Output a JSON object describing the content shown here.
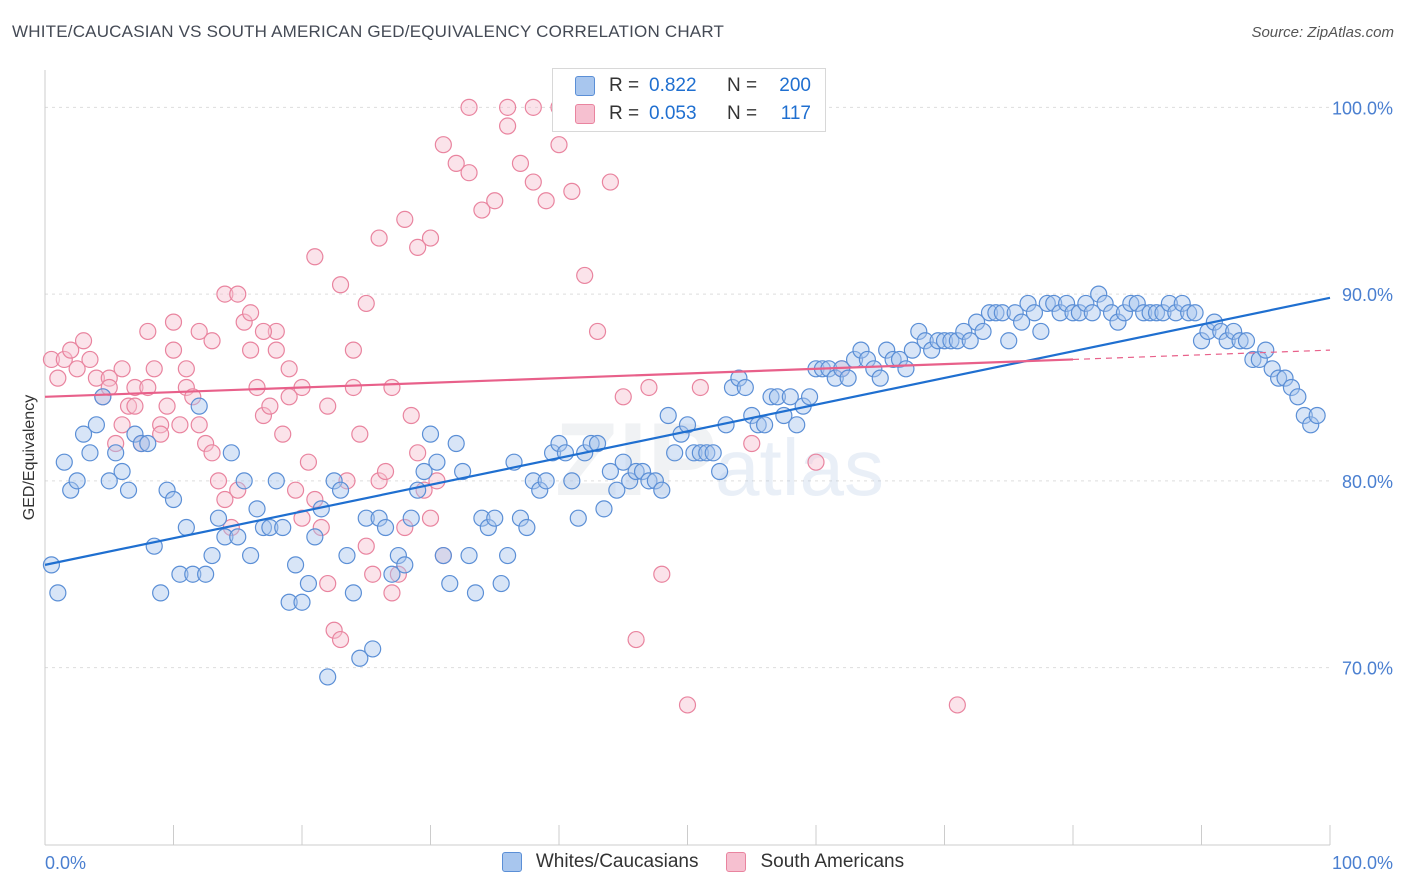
{
  "title": "WHITE/CAUCASIAN VS SOUTH AMERICAN GED/EQUIVALENCY CORRELATION CHART",
  "source": "Source: ZipAtlas.com",
  "legend": {
    "row1": {
      "r_label": "R =",
      "r_value": "0.822",
      "n_label": "N =",
      "n_value": "200"
    },
    "row2": {
      "r_label": "R =",
      "r_value": "0.053",
      "n_label": "N =",
      "n_value": "117"
    }
  },
  "bottom_legend": {
    "series1": "Whites/Caucasians",
    "series2": "South Americans"
  },
  "watermark": {
    "zip": "ZIP",
    "atlas": "atlas"
  },
  "colors": {
    "blue": "#5b8fd6",
    "blue_fill": "#a8c6ee",
    "blue_line": "#1f6fd0",
    "pink": "#e9849f",
    "pink_fill": "#f6c0d0",
    "pink_line": "#e8608a",
    "axis_text": "#4a7fd0"
  },
  "chart_data": {
    "type": "scatter",
    "ylabel": "GED/Equivalency",
    "x_tick_labels": [
      "0.0%",
      "100.0%"
    ],
    "y_tick_labels": [
      "100.0%",
      "90.0%",
      "80.0%",
      "70.0%"
    ],
    "xlim": [
      0,
      100
    ],
    "ylim": [
      60.5,
      102
    ],
    "y_ticks": [
      100,
      90,
      80,
      70
    ],
    "series": [
      {
        "name": "Whites/Caucasians",
        "trend": {
          "x": [
            0,
            100
          ],
          "y": [
            75.5,
            89.8
          ]
        },
        "points": [
          [
            0.5,
            75.5
          ],
          [
            1,
            74
          ],
          [
            1.5,
            81
          ],
          [
            2,
            79.5
          ],
          [
            2.5,
            80
          ],
          [
            3,
            82.5
          ],
          [
            3.5,
            81.5
          ],
          [
            4,
            83
          ],
          [
            4.5,
            84.5
          ],
          [
            5,
            80
          ],
          [
            5.5,
            81.5
          ],
          [
            6,
            80.5
          ],
          [
            6.5,
            79.5
          ],
          [
            7,
            82.5
          ],
          [
            7.5,
            82
          ],
          [
            8,
            82
          ],
          [
            8.5,
            76.5
          ],
          [
            9,
            74
          ],
          [
            9.5,
            79.5
          ],
          [
            10,
            79
          ],
          [
            10.5,
            75
          ],
          [
            11,
            77.5
          ],
          [
            11.5,
            75
          ],
          [
            12,
            84
          ],
          [
            12.5,
            75
          ],
          [
            13,
            76
          ],
          [
            13.5,
            78
          ],
          [
            14,
            77
          ],
          [
            14.5,
            81.5
          ],
          [
            15,
            77
          ],
          [
            15.5,
            80
          ],
          [
            16,
            76
          ],
          [
            16.5,
            78.5
          ],
          [
            17,
            77.5
          ],
          [
            17.5,
            77.5
          ],
          [
            18,
            80
          ],
          [
            18.5,
            77.5
          ],
          [
            19,
            73.5
          ],
          [
            19.5,
            75.5
          ],
          [
            20,
            73.5
          ],
          [
            20.5,
            74.5
          ],
          [
            21,
            77
          ],
          [
            21.5,
            78.5
          ],
          [
            22,
            69.5
          ],
          [
            22.5,
            80
          ],
          [
            23,
            79.5
          ],
          [
            23.5,
            76
          ],
          [
            24,
            74
          ],
          [
            24.5,
            70.5
          ],
          [
            25,
            78
          ],
          [
            25.5,
            71
          ],
          [
            26,
            78
          ],
          [
            26.5,
            77.5
          ],
          [
            27,
            75
          ],
          [
            27.5,
            76
          ],
          [
            28,
            75.5
          ],
          [
            28.5,
            78
          ],
          [
            29,
            79.5
          ],
          [
            29.5,
            80.5
          ],
          [
            30,
            82.5
          ],
          [
            30.5,
            81
          ],
          [
            31,
            76
          ],
          [
            31.5,
            74.5
          ],
          [
            32,
            82
          ],
          [
            32.5,
            80.5
          ],
          [
            33,
            76
          ],
          [
            33.5,
            74
          ],
          [
            34,
            78
          ],
          [
            34.5,
            77.5
          ],
          [
            35,
            78
          ],
          [
            35.5,
            74.5
          ],
          [
            36,
            76
          ],
          [
            36.5,
            81
          ],
          [
            37,
            78
          ],
          [
            37.5,
            77.5
          ],
          [
            38,
            80
          ],
          [
            38.5,
            79.5
          ],
          [
            39,
            80
          ],
          [
            39.5,
            81.5
          ],
          [
            40,
            82
          ],
          [
            40.5,
            81.5
          ],
          [
            41,
            80
          ],
          [
            41.5,
            78
          ],
          [
            42,
            81.5
          ],
          [
            42.5,
            82
          ],
          [
            43,
            82
          ],
          [
            43.5,
            78.5
          ],
          [
            44,
            80.5
          ],
          [
            44.5,
            79.5
          ],
          [
            45,
            81
          ],
          [
            45.5,
            80
          ],
          [
            46,
            80.5
          ],
          [
            46.5,
            80.5
          ],
          [
            47,
            80
          ],
          [
            47.5,
            80
          ],
          [
            48,
            79.5
          ],
          [
            48.5,
            83.5
          ],
          [
            49,
            81.5
          ],
          [
            49.5,
            82.5
          ],
          [
            50,
            83
          ],
          [
            50.5,
            81.5
          ],
          [
            51,
            81.5
          ],
          [
            51.5,
            81.5
          ],
          [
            52,
            81.5
          ],
          [
            52.5,
            80.5
          ],
          [
            53,
            83
          ],
          [
            53.5,
            85
          ],
          [
            54,
            85.5
          ],
          [
            54.5,
            85
          ],
          [
            55,
            83.5
          ],
          [
            55.5,
            83
          ],
          [
            56,
            83
          ],
          [
            56.5,
            84.5
          ],
          [
            57,
            84.5
          ],
          [
            57.5,
            83.5
          ],
          [
            58,
            84.5
          ],
          [
            58.5,
            83
          ],
          [
            59,
            84
          ],
          [
            59.5,
            84.5
          ],
          [
            60,
            86
          ],
          [
            60.5,
            86
          ],
          [
            61,
            86
          ],
          [
            61.5,
            85.5
          ],
          [
            62,
            86
          ],
          [
            62.5,
            85.5
          ],
          [
            63,
            86.5
          ],
          [
            63.5,
            87
          ],
          [
            64,
            86.5
          ],
          [
            64.5,
            86
          ],
          [
            65,
            85.5
          ],
          [
            65.5,
            87
          ],
          [
            66,
            86.5
          ],
          [
            66.5,
            86.5
          ],
          [
            67,
            86
          ],
          [
            67.5,
            87
          ],
          [
            68,
            88
          ],
          [
            68.5,
            87.5
          ],
          [
            69,
            87
          ],
          [
            69.5,
            87.5
          ],
          [
            70,
            87.5
          ],
          [
            70.5,
            87.5
          ],
          [
            71,
            87.5
          ],
          [
            71.5,
            88
          ],
          [
            72,
            87.5
          ],
          [
            72.5,
            88.5
          ],
          [
            73,
            88
          ],
          [
            73.5,
            89
          ],
          [
            74,
            89
          ],
          [
            74.5,
            89
          ],
          [
            75,
            87.5
          ],
          [
            75.5,
            89
          ],
          [
            76,
            88.5
          ],
          [
            76.5,
            89.5
          ],
          [
            77,
            89
          ],
          [
            77.5,
            88
          ],
          [
            78,
            89.5
          ],
          [
            78.5,
            89.5
          ],
          [
            79,
            89
          ],
          [
            79.5,
            89.5
          ],
          [
            80,
            89
          ],
          [
            80.5,
            89
          ],
          [
            81,
            89.5
          ],
          [
            81.5,
            89
          ],
          [
            82,
            90
          ],
          [
            82.5,
            89.5
          ],
          [
            83,
            89
          ],
          [
            83.5,
            88.5
          ],
          [
            84,
            89
          ],
          [
            84.5,
            89.5
          ],
          [
            85,
            89.5
          ],
          [
            85.5,
            89
          ],
          [
            86,
            89
          ],
          [
            86.5,
            89
          ],
          [
            87,
            89
          ],
          [
            87.5,
            89.5
          ],
          [
            88,
            89
          ],
          [
            88.5,
            89.5
          ],
          [
            89,
            89
          ],
          [
            89.5,
            89
          ],
          [
            90,
            87.5
          ],
          [
            90.5,
            88
          ],
          [
            91,
            88.5
          ],
          [
            91.5,
            88
          ],
          [
            92,
            87.5
          ],
          [
            92.5,
            88
          ],
          [
            93,
            87.5
          ],
          [
            93.5,
            87.5
          ],
          [
            94,
            86.5
          ],
          [
            94.5,
            86.5
          ],
          [
            95,
            87
          ],
          [
            95.5,
            86
          ],
          [
            96,
            85.5
          ],
          [
            96.5,
            85.5
          ],
          [
            97,
            85
          ],
          [
            97.5,
            84.5
          ],
          [
            98,
            83.5
          ],
          [
            98.5,
            83
          ],
          [
            99,
            83.5
          ]
        ]
      },
      {
        "name": "South Americans",
        "trend": {
          "x": [
            0,
            80
          ],
          "y": [
            84.5,
            86.5
          ]
        },
        "trend_dashed": {
          "x": [
            80,
            100
          ],
          "y": [
            86.5,
            87
          ]
        },
        "points": [
          [
            0.5,
            86.5
          ],
          [
            1,
            85.5
          ],
          [
            1.5,
            86.5
          ],
          [
            2,
            87
          ],
          [
            2.5,
            86
          ],
          [
            3,
            87.5
          ],
          [
            3.5,
            86.5
          ],
          [
            4,
            85.5
          ],
          [
            4.5,
            84.5
          ],
          [
            5,
            85.5
          ],
          [
            5.5,
            82
          ],
          [
            6,
            83
          ],
          [
            6.5,
            84
          ],
          [
            7,
            85
          ],
          [
            7.5,
            82
          ],
          [
            8,
            88
          ],
          [
            8.5,
            86
          ],
          [
            9,
            83
          ],
          [
            9.5,
            84
          ],
          [
            10,
            87
          ],
          [
            10.5,
            83
          ],
          [
            11,
            85
          ],
          [
            11.5,
            84.5
          ],
          [
            12,
            83
          ],
          [
            12.5,
            82
          ],
          [
            13,
            81.5
          ],
          [
            13.5,
            80
          ],
          [
            14,
            79
          ],
          [
            14.5,
            77.5
          ],
          [
            15,
            79.5
          ],
          [
            15.5,
            88.5
          ],
          [
            16,
            87
          ],
          [
            16.5,
            85
          ],
          [
            17,
            83.5
          ],
          [
            17.5,
            84
          ],
          [
            18,
            88
          ],
          [
            18.5,
            82.5
          ],
          [
            19,
            84.5
          ],
          [
            19.5,
            79.5
          ],
          [
            20,
            78
          ],
          [
            20.5,
            81
          ],
          [
            21,
            79
          ],
          [
            21.5,
            77.5
          ],
          [
            22,
            74.5
          ],
          [
            22.5,
            72
          ],
          [
            23,
            71.5
          ],
          [
            23.5,
            80
          ],
          [
            24,
            85
          ],
          [
            24.5,
            82.5
          ],
          [
            25,
            76.5
          ],
          [
            25.5,
            75
          ],
          [
            26,
            80
          ],
          [
            26.5,
            80.5
          ],
          [
            27,
            74
          ],
          [
            27.5,
            75
          ],
          [
            28,
            77.5
          ],
          [
            28.5,
            83.5
          ],
          [
            29,
            81.5
          ],
          [
            29.5,
            79.5
          ],
          [
            30,
            78
          ],
          [
            30.5,
            80
          ],
          [
            31,
            76
          ],
          [
            32,
            97
          ],
          [
            33,
            96.5
          ],
          [
            34,
            94.5
          ],
          [
            35,
            95
          ],
          [
            36,
            99
          ],
          [
            37,
            97
          ],
          [
            38,
            96
          ],
          [
            39,
            95
          ],
          [
            40,
            100
          ],
          [
            41,
            95.5
          ],
          [
            42,
            91
          ],
          [
            43,
            88
          ],
          [
            44,
            96
          ],
          [
            45,
            84.5
          ],
          [
            46,
            71.5
          ],
          [
            47,
            85
          ],
          [
            48,
            75
          ],
          [
            5,
            85
          ],
          [
            6,
            86
          ],
          [
            7,
            84
          ],
          [
            8,
            85
          ],
          [
            9,
            82.5
          ],
          [
            10,
            88.5
          ],
          [
            11,
            86
          ],
          [
            12,
            88
          ],
          [
            13,
            87.5
          ],
          [
            14,
            90
          ],
          [
            15,
            90
          ],
          [
            16,
            89
          ],
          [
            17,
            88
          ],
          [
            18,
            87
          ],
          [
            19,
            86
          ],
          [
            20,
            85
          ],
          [
            21,
            92
          ],
          [
            22,
            84
          ],
          [
            23,
            90.5
          ],
          [
            24,
            87
          ],
          [
            25,
            89.5
          ],
          [
            26,
            93
          ],
          [
            27,
            85
          ],
          [
            28,
            94
          ],
          [
            29,
            92.5
          ],
          [
            30,
            93
          ],
          [
            31,
            98
          ],
          [
            33,
            100
          ],
          [
            36,
            100
          ],
          [
            38,
            100
          ],
          [
            40,
            98
          ],
          [
            51,
            85
          ],
          [
            55,
            82
          ],
          [
            60,
            81
          ],
          [
            62,
            86
          ],
          [
            50,
            68
          ],
          [
            71,
            68
          ]
        ]
      }
    ]
  }
}
